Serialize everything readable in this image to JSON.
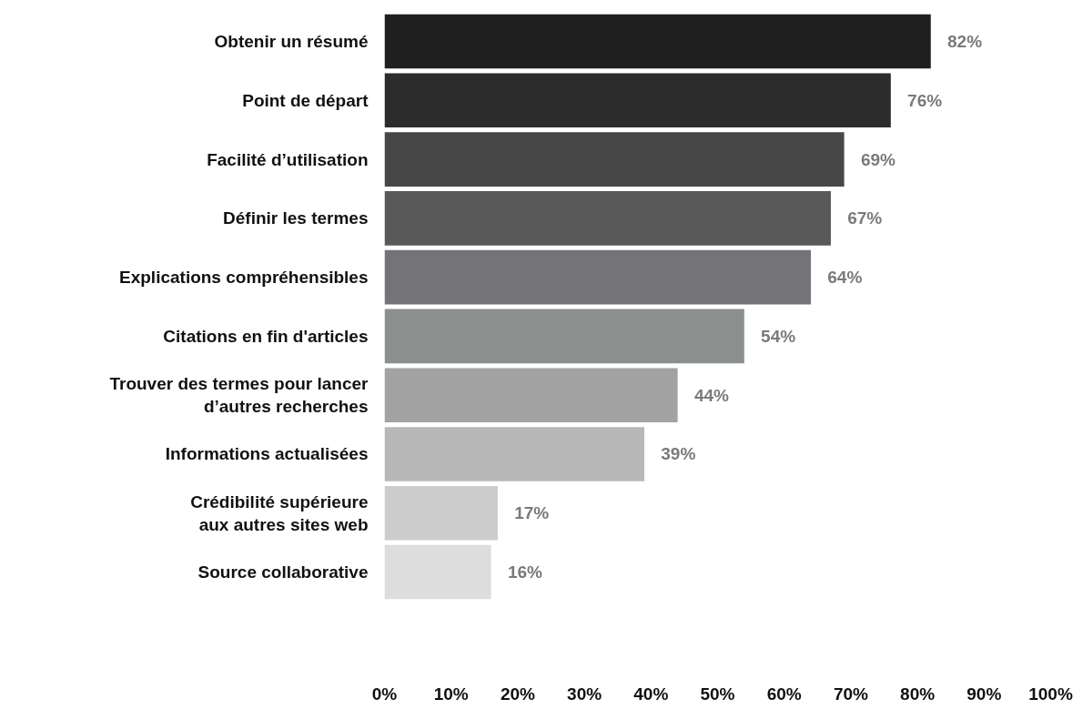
{
  "chart_data": {
    "type": "bar",
    "orientation": "horizontal",
    "data_labels": true,
    "value_labels": [
      "82%",
      "76%",
      "69%",
      "67%",
      "64%",
      "54%",
      "44%",
      "39%",
      "17%",
      "16%"
    ],
    "categories": [
      "Obtenir un résumé",
      "Point de départ",
      "Facilité d’utilisation",
      "Définir les termes",
      "Explications compréhensibles",
      "Citations en fin d'articles",
      "Trouver des termes pour lancer\nd’autres recherches",
      "Informations actualisées",
      "Crédibilité supérieure\naux autres sites web",
      "Source collaborative"
    ],
    "values": [
      82,
      76,
      69,
      67,
      64,
      54,
      44,
      39,
      17,
      16
    ],
    "colors": [
      "#1f1f1f",
      "#2c2c2c",
      "#474747",
      "#595959",
      "#747377",
      "#8b8f8e",
      "#a2a2a2",
      "#b8b8b8",
      "#cdcdcd",
      "#dddddd"
    ],
    "xlim": [
      0,
      100
    ],
    "xticks": [
      {
        "value": 0,
        "label": "0%"
      },
      {
        "value": 10,
        "label": "10%"
      },
      {
        "value": 20,
        "label": "20%"
      },
      {
        "value": 30,
        "label": "30%"
      },
      {
        "value": 40,
        "label": "40%"
      },
      {
        "value": 50,
        "label": "50%"
      },
      {
        "value": 60,
        "label": "60%"
      },
      {
        "value": 70,
        "label": "70%"
      },
      {
        "value": 80,
        "label": "80%"
      },
      {
        "value": 90,
        "label": "90%"
      },
      {
        "value": 100,
        "label": "100%"
      }
    ],
    "grid": false
  }
}
